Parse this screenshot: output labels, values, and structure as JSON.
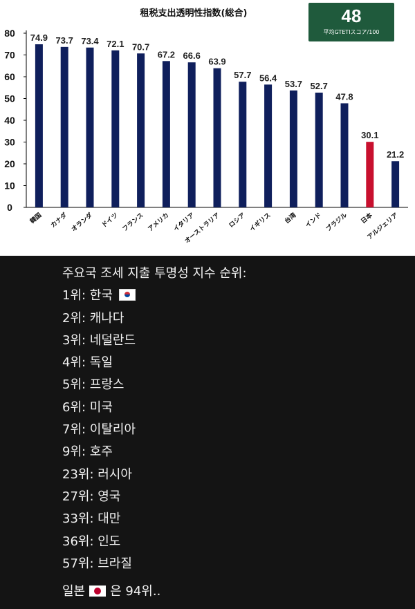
{
  "chart_data": {
    "type": "bar",
    "title": "租税支出透明性指数(総合)",
    "categories": [
      "韓国",
      "カナダ",
      "オランダ",
      "ドイツ",
      "フランス",
      "アメリカ",
      "イタリア",
      "オーストラリア",
      "ロシア",
      "イギリス",
      "台湾",
      "インド",
      "ブラジル",
      "日本",
      "アルジェリア"
    ],
    "values": [
      74.9,
      73.7,
      73.4,
      72.1,
      70.7,
      67.2,
      66.6,
      63.9,
      57.7,
      56.4,
      53.7,
      52.7,
      47.8,
      30.1,
      21.2
    ],
    "value_labels": [
      "74.9",
      "73.7",
      "73.4",
      "72.1",
      "70.7",
      "67.2",
      "66.6",
      "63.9",
      "57.7",
      "56.4",
      "53.7",
      "52.7",
      "47.8",
      "30.1",
      "21.2"
    ],
    "highlight_category": "日本",
    "ylim": [
      0,
      80
    ],
    "yticks": [
      "0",
      "10",
      "20",
      "30",
      "40",
      "50",
      "60",
      "70",
      "80"
    ],
    "grid": false,
    "xlabel": "",
    "ylabel": "",
    "colors": {
      "bar": "#0f1f5c",
      "highlight": "#c8102e",
      "panel_bg": "#ffffff"
    }
  },
  "average_box": {
    "value": "48",
    "caption": "平均GTETIスコア/100",
    "color": "#1f5a3c"
  },
  "ranking": {
    "heading": "주요국 조세 지출 투명성 지수 순위:",
    "items": [
      {
        "text": "1위: 한국",
        "flag": "korea-flag-icon"
      },
      {
        "text": "2위: 캐나다"
      },
      {
        "text": "3위: 네덜란드"
      },
      {
        "text": "4위: 독일"
      },
      {
        "text": "5위: 프랑스"
      },
      {
        "text": "6위: 미국"
      },
      {
        "text": "7위: 이탈리아"
      },
      {
        "text": "9위: 호주"
      },
      {
        "text": "23위: 러시아"
      },
      {
        "text": "27위: 영국"
      },
      {
        "text": "33위: 대만"
      },
      {
        "text": "36위: 인도"
      },
      {
        "text": "57위: 브라질"
      }
    ],
    "footer_prefix": "일본",
    "footer_suffix": "은 94위..",
    "footer_flag": "japan-flag-icon"
  }
}
